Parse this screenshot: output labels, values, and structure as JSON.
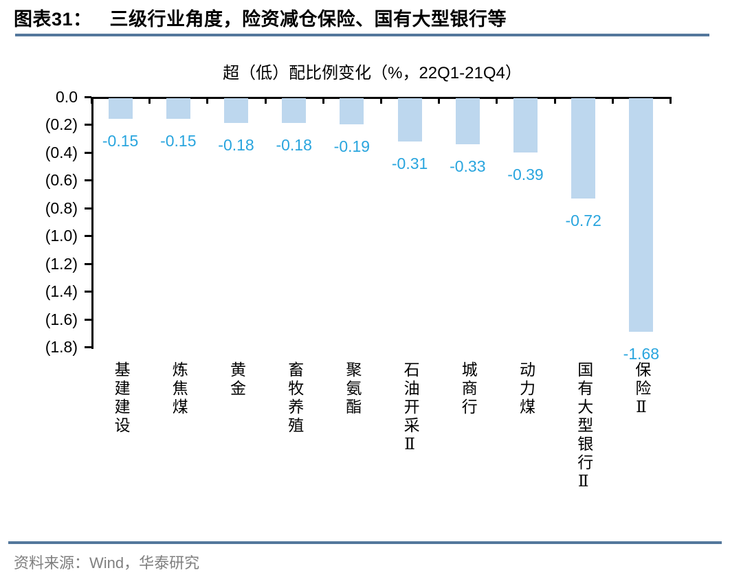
{
  "header": {
    "tag": "图表31：",
    "title": "三级行业角度，险资减仓保险、国有大型银行等"
  },
  "legend": {
    "label": "超（低）配比例变化（%，22Q1-21Q4）"
  },
  "chart_data": {
    "type": "bar",
    "title": "超（低）配比例变化（%，22Q1-21Q4）",
    "categories": [
      "基建建设",
      "炼焦煤",
      "黄金",
      "畜牧养殖",
      "聚氨酯",
      "石油开采Ⅱ",
      "城商行",
      "动力煤",
      "国有大型银行Ⅱ",
      "保险Ⅱ"
    ],
    "values": [
      -0.15,
      -0.15,
      -0.18,
      -0.18,
      -0.19,
      -0.31,
      -0.33,
      -0.39,
      -0.72,
      -1.68
    ],
    "data_labels": [
      "-0.15",
      "-0.15",
      "-0.18",
      "-0.18",
      "-0.19",
      "-0.31",
      "-0.33",
      "-0.39",
      "-0.72",
      "-1.68"
    ],
    "y_tick_labels": [
      "0.0",
      "(0.2)",
      "(0.4)",
      "(0.6)",
      "(0.8)",
      "(1.0)",
      "(1.2)",
      "(1.4)",
      "(1.6)",
      "(1.8)"
    ],
    "ylim": [
      -1.8,
      0
    ],
    "xlabel": "",
    "ylabel": "",
    "grid": false,
    "legend_position": "top",
    "bar_color": "#BDD7EE",
    "value_label_color": "#29A5DE"
  },
  "footer": {
    "source": "资料来源：Wind，华泰研究"
  },
  "colors": {
    "bar": "#BDD7EE",
    "value_label": "#29A5DE",
    "rule": "#54789C",
    "axis": "#000000",
    "footer_text": "#7F7F7F"
  }
}
